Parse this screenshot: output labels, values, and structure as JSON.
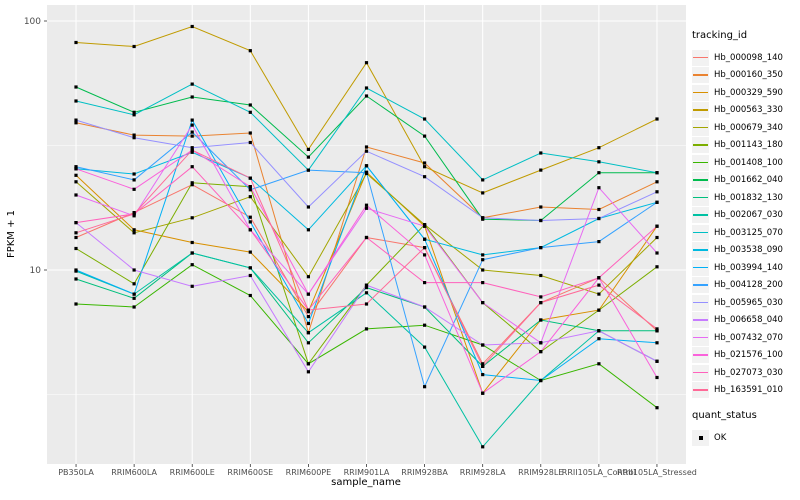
{
  "window": {
    "description": "ggplot2 line chart of gene expression (FPKM + 1) per sample"
  },
  "legend": {
    "color_title": "tracking_id",
    "shape_title": "quant_status",
    "shape_items": [
      {
        "label": "OK"
      }
    ]
  },
  "chart_data": {
    "type": "line",
    "title": "",
    "xlabel": "sample_name",
    "ylabel": "FPKM + 1",
    "log_y": true,
    "ylim": [
      1.7,
      115
    ],
    "y_major_ticks": [
      10,
      100
    ],
    "y_minor_ticks": [
      3.1623,
      31.623
    ],
    "grid": true,
    "panel_bg": "#EBEBEB",
    "grid_color": "#FFFFFF",
    "tick_label_color": "#4D4D4D",
    "point_color": "#000000",
    "legend_position": "right",
    "categories": [
      "PB350LA",
      "RRIM600LA",
      "RRIM600LE",
      "RRIM600SE",
      "RRIM600PE",
      "RRIM901LA",
      "RRIM928BA",
      "RRIM928LA",
      "RRIM928LE",
      "RRII105LA_Control",
      "RRII105LA_Stressed"
    ],
    "series": [
      {
        "name": "Hb_000098_140",
        "color": "#F8766D",
        "values": [
          13.5,
          17.0,
          22.0,
          16.3,
          6.5,
          13.5,
          12.3,
          4.2,
          7.4,
          9.3,
          5.7
        ]
      },
      {
        "name": "Hb_000160_350",
        "color": "#EA8331",
        "values": [
          39.0,
          34.8,
          34.5,
          35.5,
          5.6,
          31.2,
          26.9,
          16.2,
          17.9,
          17.5,
          22.6
        ]
      },
      {
        "name": "Hb_000329_590",
        "color": "#D89000",
        "values": [
          24.0,
          14.5,
          12.9,
          11.8,
          6.8,
          24.7,
          15.0,
          3.2,
          6.3,
          6.9,
          15.0
        ]
      },
      {
        "name": "Hb_000563_330",
        "color": "#C09B00",
        "values": [
          82.0,
          79.0,
          95.0,
          76.0,
          30.5,
          68.0,
          26.0,
          20.4,
          25.2,
          31.0,
          40.4
        ]
      },
      {
        "name": "Hb_000679_340",
        "color": "#A3A500",
        "values": [
          22.6,
          14.1,
          16.2,
          19.7,
          9.4,
          24.4,
          15.2,
          10.0,
          9.5,
          8.0,
          13.5
        ]
      },
      {
        "name": "Hb_001143_180",
        "color": "#7CAE00",
        "values": [
          12.2,
          8.8,
          22.4,
          21.6,
          4.2,
          8.7,
          15.2,
          7.4,
          4.7,
          6.9,
          10.3
        ]
      },
      {
        "name": "Hb_001408_100",
        "color": "#39B600",
        "values": [
          7.3,
          7.1,
          10.5,
          7.9,
          4.2,
          5.8,
          6.0,
          5.0,
          3.6,
          4.2,
          2.8
        ]
      },
      {
        "name": "Hb_001662_040",
        "color": "#00BB4E",
        "values": [
          54.3,
          43.0,
          49.5,
          46.0,
          28.4,
          50.0,
          34.5,
          16.0,
          15.8,
          24.6,
          24.6
        ]
      },
      {
        "name": "Hb_001832_130",
        "color": "#00BF7D",
        "values": [
          9.2,
          7.7,
          11.7,
          10.2,
          5.1,
          8.5,
          7.1,
          4.1,
          6.3,
          5.7,
          5.7
        ]
      },
      {
        "name": "Hb_002067_030",
        "color": "#00C1A3",
        "values": [
          9.9,
          8.0,
          11.7,
          10.2,
          5.6,
          8.1,
          4.9,
          1.95,
          3.6,
          5.7,
          4.3
        ]
      },
      {
        "name": "Hb_003125_070",
        "color": "#00BFC4",
        "values": [
          47.7,
          42.0,
          55.8,
          43.0,
          25.2,
          53.8,
          40.4,
          23.0,
          29.5,
          27.2,
          24.6
        ]
      },
      {
        "name": "Hb_003538_090",
        "color": "#00BAE0",
        "values": [
          25.5,
          24.3,
          29.7,
          23.4,
          14.5,
          26.2,
          13.3,
          11.5,
          12.3,
          16.1,
          18.7
        ]
      },
      {
        "name": "Hb_003994_140",
        "color": "#00B0F6",
        "values": [
          10.0,
          8.0,
          40.0,
          15.6,
          6.1,
          26.2,
          13.3,
          3.8,
          3.6,
          5.3,
          5.1
        ]
      },
      {
        "name": "Hb_004128_200",
        "color": "#35A2FF",
        "values": [
          26.0,
          23.0,
          35.8,
          21.0,
          25.2,
          24.6,
          3.4,
          11.0,
          12.3,
          13.0,
          18.7
        ]
      },
      {
        "name": "Hb_005965_030",
        "color": "#9590FF",
        "values": [
          40.0,
          34.0,
          31.0,
          32.5,
          17.9,
          30.0,
          23.7,
          16.2,
          15.8,
          16.1,
          20.6
        ]
      },
      {
        "name": "Hb_006658_040",
        "color": "#C77CFF",
        "values": [
          15.5,
          10.0,
          8.6,
          9.5,
          3.9,
          8.7,
          7.1,
          5.0,
          5.1,
          5.7,
          4.3
        ]
      },
      {
        "name": "Hb_007432_070",
        "color": "#E76BF3",
        "values": [
          20.0,
          16.5,
          38.2,
          14.5,
          8.0,
          17.7,
          15.0,
          7.4,
          5.1,
          21.4,
          11.7
        ]
      },
      {
        "name": "Hb_021576_100",
        "color": "#FA62DB",
        "values": [
          25.5,
          21.1,
          30.3,
          21.6,
          8.0,
          18.2,
          11.5,
          3.2,
          4.7,
          9.3,
          3.7
        ]
      },
      {
        "name": "Hb_027073_030",
        "color": "#FF62BC",
        "values": [
          15.5,
          16.8,
          26.0,
          14.5,
          6.9,
          13.5,
          8.9,
          8.9,
          7.8,
          9.3,
          15.0
        ]
      },
      {
        "name": "Hb_163591_010",
        "color": "#FF6A98",
        "values": [
          14.1,
          16.8,
          30.3,
          23.4,
          6.9,
          7.3,
          12.3,
          4.1,
          7.4,
          8.7,
          5.8
        ]
      }
    ]
  }
}
